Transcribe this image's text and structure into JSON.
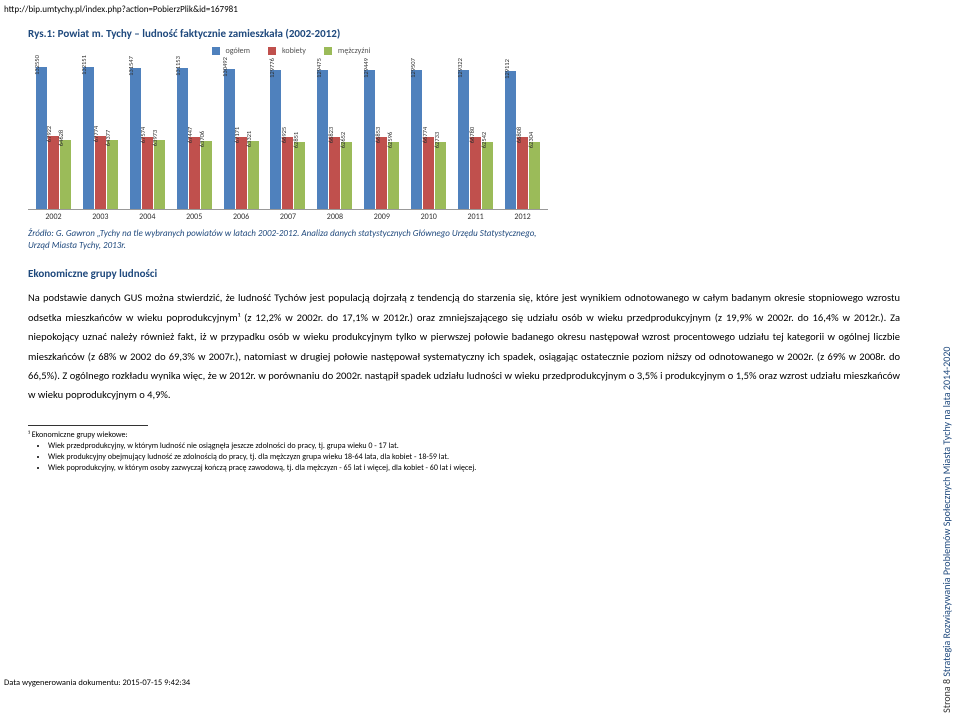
{
  "url": "http://bip.umtychy.pl/index.php?action=PobierzPlik&id=167981",
  "figure": {
    "title": "Rys.1: Powiat m. Tychy – ludność faktycznie zamieszkała (2002-2012)",
    "legend": [
      {
        "label": "ogółem",
        "color": "#4f81bd"
      },
      {
        "label": "kobiety",
        "color": "#c0504d"
      },
      {
        "label": "mężczyźni",
        "color": "#9bbb59"
      }
    ],
    "years": [
      "2002",
      "2003",
      "2004",
      "2005",
      "2006",
      "2007",
      "2008",
      "2009",
      "2010",
      "2011",
      "2012"
    ],
    "series": {
      "ogolem": [
        132550,
        132151,
        131547,
        131153,
        130492,
        129776,
        129475,
        129449,
        129507,
        129322,
        129112
      ],
      "kobiety": [
        67922,
        67774,
        67574,
        67447,
        67171,
        66925,
        66823,
        66853,
        66774,
        66780,
        66808
      ],
      "mezczyzni": [
        64628,
        64377,
        63973,
        63706,
        63321,
        62851,
        62652,
        62596,
        62733,
        62542,
        62304
      ]
    },
    "colors": {
      "ogolem": "#4f81bd",
      "kobiety": "#c0504d",
      "mezczyzni": "#9bbb59"
    },
    "ymax": 140000
  },
  "source": "Źródło: G. Gawron „Tychy na tle wybranych powiatów w latach 2002-2012. Analiza danych statystycznych Głównego Urzędu Statystycznego, Urząd Miasta Tychy, 2013r.",
  "section_heading": "Ekonomiczne grupy ludności",
  "body": "Na podstawie danych GUS można stwierdzić, że ludność Tychów jest populacją dojrzałą z tendencją do starzenia się, które jest wynikiem odnotowanego w całym badanym okresie stopniowego wzrostu odsetka mieszkańców w wieku poprodukcyjnym¹ (z 12,2% w 2002r. do 17,1% w 2012r.) oraz zmniejszającego się udziału osób w wieku przedprodukcyjnym (z 19,9% w 2002r. do 16,4% w 2012r.). Za niepokojący uznać należy również fakt, iż w przypadku osób w wieku produkcyjnym tylko w pierwszej połowie badanego okresu następował wzrost procentowego udziału tej kategorii w ogólnej liczbie mieszkańców (z 68% w 2002 do 69,3% w 2007r.), natomiast w drugiej połowie następował systematyczny ich spadek, osiągając ostatecznie poziom niższy od odnotowanego w 2002r. (z 69% w 2008r. do 66,5%). Z ogólnego rozkładu wynika więc, że w 2012r. w porównaniu do 2002r. nastąpił spadek udziału ludności w wieku przedprodukcyjnym o 3,5% i produkcyjnym o 1,5% oraz wzrost udziału mieszkańców w wieku poprodukcyjnym o 4,9%.",
  "footnote": {
    "lead": "¹ Ekonomiczne grupy wiekowe:",
    "items": [
      "Wiek przedprodukcyjny, w którym ludność nie osiągnęła jeszcze zdolności do pracy, tj. grupa wieku 0 - 17 lat.",
      "Wiek produkcyjny obejmujący ludność ze zdolnością do pracy, tj. dla mężczyzn grupa wieku 18-64 lata, dla kobiet - 18-59 lat.",
      "Wiek poprodukcyjny, w którym osoby zazwyczaj kończą pracę zawodową, tj. dla mężczyzn - 65 lat i więcej, dla kobiet - 60 lat i więcej."
    ]
  },
  "side": {
    "page_label": "Strona 8",
    "doc_title": "Strategia Rozwiązywania Problemów Społecznych Miasta Tychy na lata 2014-2020"
  },
  "gen_date": "Data wygenerowania dokumentu: 2015-07-15 9:42:34"
}
